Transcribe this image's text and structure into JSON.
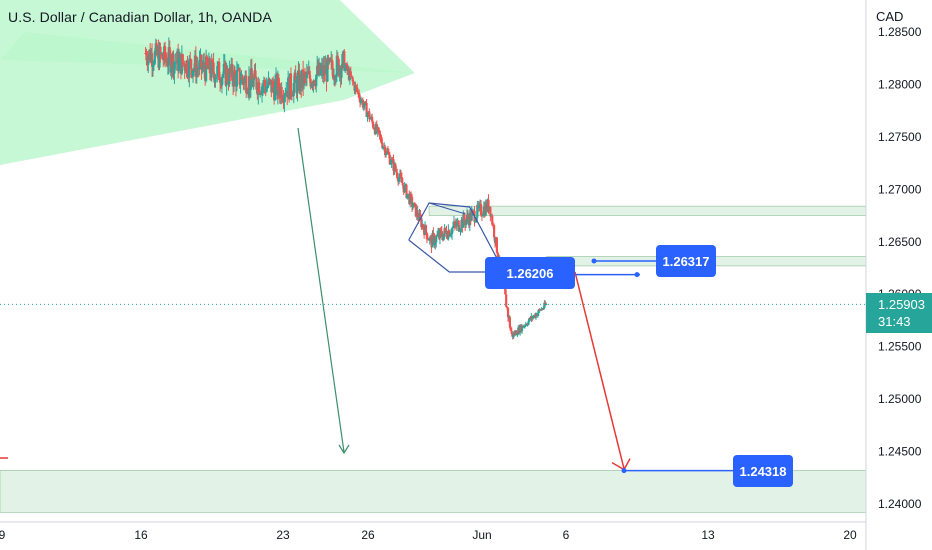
{
  "header": {
    "symbol_title": "U.S. Dollar / Canadian Dollar, 1h, OANDA",
    "currency": "CAD"
  },
  "price_axis": {
    "ticks": [
      "1.28500",
      "1.28000",
      "1.27500",
      "1.27000",
      "1.26500",
      "1.26000",
      "1.25500",
      "1.25000",
      "1.24500",
      "1.24000"
    ],
    "last_price": "1.25903",
    "countdown": "31:43"
  },
  "time_axis": {
    "ticks": [
      "9",
      "16",
      "23",
      "26",
      "Jun",
      "6",
      "13",
      "20"
    ]
  },
  "annotations": {
    "label_entry": "1.26206",
    "label_stop": "1.26317",
    "label_target": "1.24318"
  },
  "colors": {
    "up_candle": "#26a69a",
    "down_candle": "#ef5350",
    "wedge_fill": "#b9f6ca",
    "zone_fill": "#e3f2e6",
    "badge": "#2962ff",
    "projection_arrow": "#e53935",
    "pattern_lines": "#3a57a7"
  },
  "chart_data": {
    "type": "candlestick",
    "symbol": "U.S. Dollar / Canadian Dollar, 1h, OANDA",
    "ylabel": "CAD",
    "ylim": [
      1.2392,
      1.2867
    ],
    "price_ticks": [
      1.285,
      1.28,
      1.275,
      1.27,
      1.265,
      1.26,
      1.255,
      1.25,
      1.245,
      1.24
    ],
    "x_ticks": [
      "9",
      "16",
      "23",
      "26",
      "Jun",
      "6",
      "13",
      "20"
    ],
    "last_price": 1.25903,
    "series": [
      {
        "name": "price",
        "segments": [
          {
            "from_day": 16.2,
            "to_day": 23,
            "start": 1.283,
            "end": 1.2795,
            "volatility": 0.0025
          },
          {
            "from_day": 23,
            "to_day": 26,
            "start": 1.2795,
            "end": 1.282,
            "volatility": 0.0025
          },
          {
            "from_day": 26,
            "to_day": 30.3,
            "start": 1.282,
            "end": 1.265,
            "volatility": 0.0012
          },
          {
            "from_day": 30.3,
            "to_day": 33.2,
            "start": 1.265,
            "end": 1.2685,
            "volatility": 0.0015
          },
          {
            "from_day": 33.2,
            "to_day": 34.3,
            "start": 1.2685,
            "end": 1.256,
            "volatility": 0.0012
          },
          {
            "from_day": 34.3,
            "to_day": 36.0,
            "start": 1.256,
            "end": 1.259,
            "volatility": 0.0007
          }
        ]
      }
    ],
    "zones": [
      {
        "name": "upper-resistance",
        "from": 1.2675,
        "to": 1.2684,
        "from_day": 30.2
      },
      {
        "name": "mid-resistance",
        "from": 1.2627,
        "to": 1.2636,
        "from_day": 36.0
      },
      {
        "name": "target-support",
        "from": 1.2392,
        "to": 1.2432,
        "from_day": 0
      }
    ],
    "levels": {
      "entry": 1.26206,
      "stop": 1.26317,
      "target": 1.24318
    }
  }
}
